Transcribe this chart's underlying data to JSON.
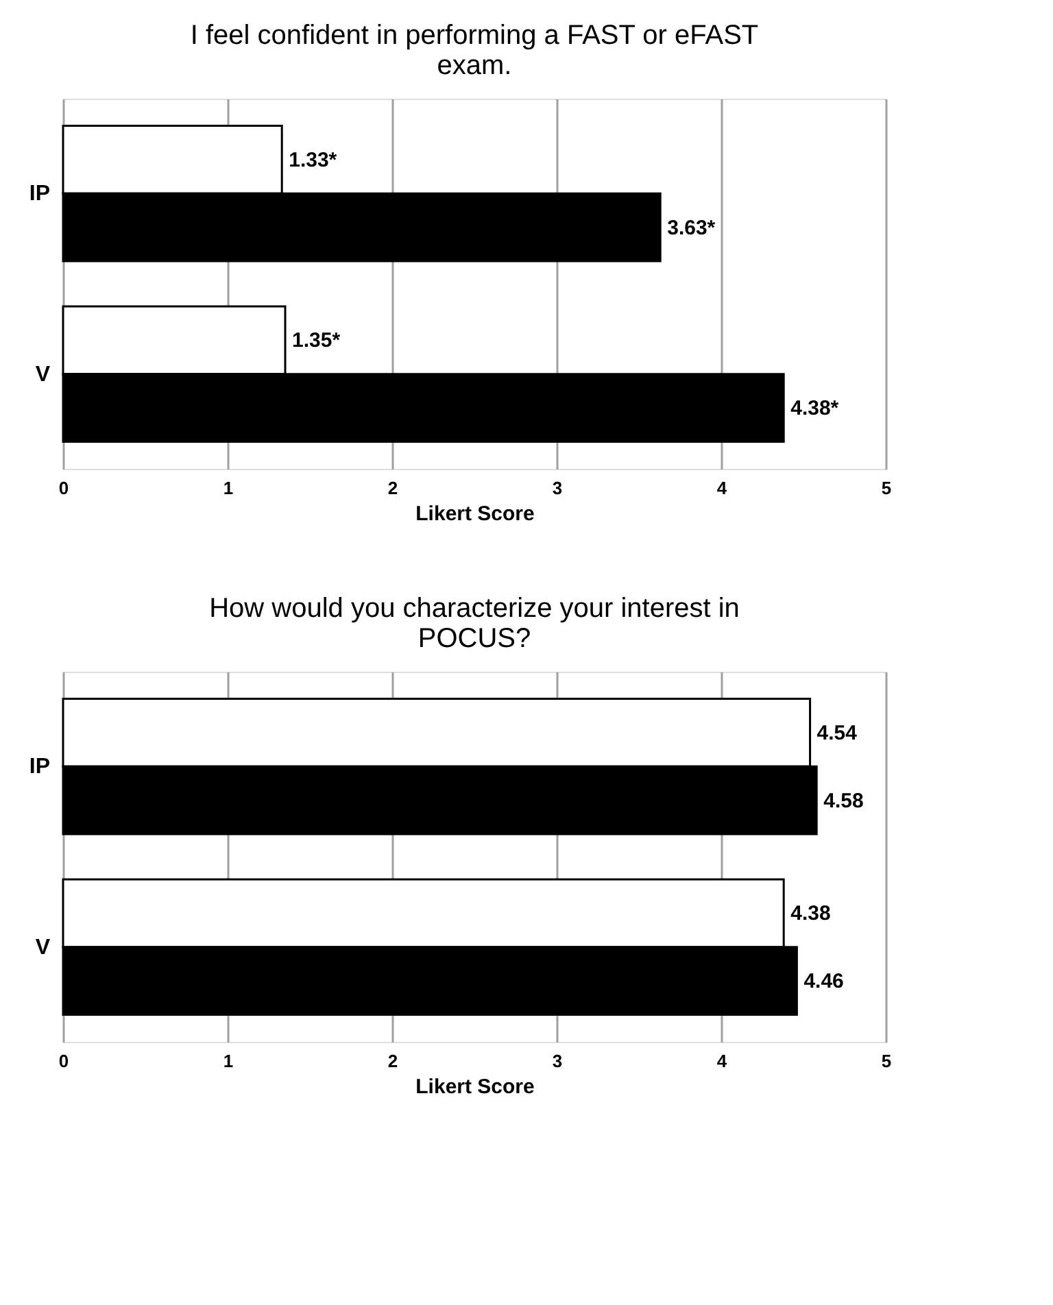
{
  "chart_data": [
    {
      "type": "bar",
      "orientation": "horizontal",
      "title": "I feel confident in performing a FAST or eFAST exam.",
      "xlabel": "Likert Score",
      "categories": [
        "IP",
        "V"
      ],
      "series": [
        {
          "color": "#ffffff",
          "values": [
            1.33,
            1.35
          ],
          "value_labels": [
            "1.33*",
            "1.35*"
          ]
        },
        {
          "color": "#000000",
          "values": [
            3.63,
            4.38
          ],
          "value_labels": [
            "3.63*",
            "4.38*"
          ]
        }
      ],
      "xlim": [
        0,
        5
      ],
      "xticks": [
        0,
        1,
        2,
        3,
        4,
        5
      ],
      "grid": "x"
    },
    {
      "type": "bar",
      "orientation": "horizontal",
      "title": "How would you characterize your interest in POCUS?",
      "xlabel": "Likert Score",
      "categories": [
        "IP",
        "V"
      ],
      "series": [
        {
          "color": "#ffffff",
          "values": [
            4.54,
            4.38
          ],
          "value_labels": [
            "4.54",
            "4.38"
          ]
        },
        {
          "color": "#000000",
          "values": [
            4.58,
            4.46
          ],
          "value_labels": [
            "4.58",
            "4.46"
          ]
        }
      ],
      "xlim": [
        0,
        5
      ],
      "xticks": [
        0,
        1,
        2,
        3,
        4,
        5
      ],
      "grid": "x"
    }
  ]
}
